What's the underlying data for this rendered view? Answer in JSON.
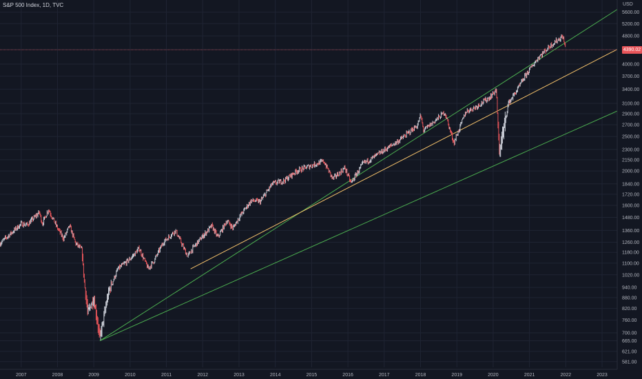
{
  "header": {
    "symbol_title": "S&P 500 Index, 1D, TVC",
    "currency": "USD"
  },
  "price_axis": {
    "labels": [
      "5600.00",
      "5200.00",
      "4800.00",
      "4400.00",
      "4000.00",
      "3700.00",
      "3400.00",
      "3100.00",
      "2900.00",
      "2700.00",
      "2500.00",
      "2300.00",
      "2150.00",
      "2000.00",
      "1840.00",
      "1720.00",
      "1600.00",
      "1480.00",
      "1360.00",
      "1260.00",
      "1180.00",
      "1100.00",
      "1020.00",
      "940.00",
      "880.00",
      "820.00",
      "760.00",
      "700.00",
      "665.00",
      "621.00",
      "581.00"
    ],
    "last_price_tag": "4390.02"
  },
  "time_axis": {
    "labels": [
      "2007",
      "2008",
      "2009",
      "2010",
      "2011",
      "2012",
      "2013",
      "2014",
      "2015",
      "2016",
      "2017",
      "2018",
      "2019",
      "2020",
      "2021",
      "2022",
      "2023"
    ]
  },
  "colors": {
    "background": "#131722",
    "grid": "#1f2433",
    "candle_up": "#c9cdd6",
    "candle_down": "#e8555a",
    "channel": "#4caf50",
    "midline": "#f5c26b",
    "price_line": "#e8555a"
  },
  "chart_data": {
    "type": "line",
    "title": "S&P 500 Index, 1D, TVC",
    "xlabel": "",
    "ylabel": "USD",
    "scale": "log",
    "ylim": [
      560,
      5900
    ],
    "xlim": [
      "2006-06",
      "2023-06"
    ],
    "grid": true,
    "series": [
      {
        "x": [
          "2006-06",
          "2006-09",
          "2007-01",
          "2007-03",
          "2007-07",
          "2007-08",
          "2007-10",
          "2008-01",
          "2008-03",
          "2008-05",
          "2008-07",
          "2008-09",
          "2008-10",
          "2008-11",
          "2009-01",
          "2009-03",
          "2009-06",
          "2009-09",
          "2010-01",
          "2010-04",
          "2010-07",
          "2010-09",
          "2010-12",
          "2011-04",
          "2011-08",
          "2011-10",
          "2012-01",
          "2012-04",
          "2012-06",
          "2012-09",
          "2012-11",
          "2013-01",
          "2013-05",
          "2013-08",
          "2013-12",
          "2014-04",
          "2014-08",
          "2014-12",
          "2015-05",
          "2015-08",
          "2015-12",
          "2016-02",
          "2016-06",
          "2016-09",
          "2016-12",
          "2017-06",
          "2017-12",
          "2018-01",
          "2018-02",
          "2018-06",
          "2018-09",
          "2018-12",
          "2019-04",
          "2019-07",
          "2019-12",
          "2020-02",
          "2020-03",
          "2020-06",
          "2020-09",
          "2020-12",
          "2021-04",
          "2021-08",
          "2021-12",
          "2022-01"
        ],
        "values": [
          1250,
          1320,
          1420,
          1410,
          1530,
          1420,
          1560,
          1380,
          1290,
          1400,
          1250,
          1200,
          950,
          800,
          870,
          680,
          920,
          1060,
          1130,
          1210,
          1060,
          1120,
          1260,
          1360,
          1150,
          1220,
          1310,
          1400,
          1300,
          1450,
          1380,
          1480,
          1650,
          1640,
          1840,
          1880,
          2000,
          2060,
          2130,
          1900,
          2040,
          1850,
          2100,
          2170,
          2260,
          2440,
          2690,
          2870,
          2600,
          2780,
          2930,
          2400,
          2940,
          3020,
          3230,
          3390,
          2250,
          3100,
          3390,
          3750,
          4180,
          4520,
          4790,
          4390
        ]
      }
    ],
    "trend_lines": [
      {
        "x": [
          "2009-03",
          "2023-06"
        ],
        "values": [
          665,
          5700
        ]
      },
      {
        "x": [
          "2011-09",
          "2023-06"
        ],
        "values": [
          1060,
          4400
        ]
      },
      {
        "x": [
          "2009-03",
          "2023-06"
        ],
        "values": [
          665,
          2950
        ]
      }
    ]
  }
}
